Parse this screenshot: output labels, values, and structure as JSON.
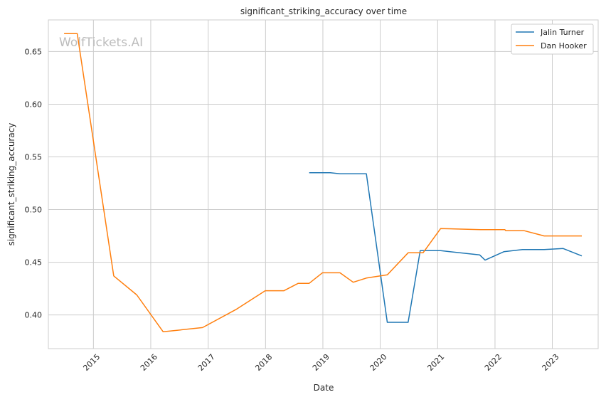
{
  "chart_data": {
    "type": "line",
    "title": "significant_striking_accuracy over time",
    "xlabel": "Date",
    "ylabel": "significant_striking_accuracy",
    "watermark": "WolfTickets.AI",
    "xlim": [
      "2014-03-20",
      "2023-10-20"
    ],
    "ylim": [
      0.368,
      0.68
    ],
    "x_ticks": [
      "2015",
      "2016",
      "2017",
      "2018",
      "2019",
      "2020",
      "2021",
      "2022",
      "2023"
    ],
    "y_ticks": [
      "0.40",
      "0.45",
      "0.50",
      "0.55",
      "0.60",
      "0.65"
    ],
    "y_tick_values": [
      0.4,
      0.45,
      0.5,
      0.55,
      0.6,
      0.65
    ],
    "grid": true,
    "legend_position": "top-right",
    "series": [
      {
        "name": "Jalin Turner",
        "color": "#1f77b4",
        "points": [
          [
            "2018-10-06",
            0.535
          ],
          [
            "2019-02-17",
            0.535
          ],
          [
            "2019-04-20",
            0.534
          ],
          [
            "2019-10-05",
            0.534
          ],
          [
            "2020-02-15",
            0.393
          ],
          [
            "2020-06-27",
            0.393
          ],
          [
            "2020-09-12",
            0.461
          ],
          [
            "2021-01-20",
            0.461
          ],
          [
            "2021-09-25",
            0.457
          ],
          [
            "2021-10-30",
            0.452
          ],
          [
            "2022-02-26",
            0.46
          ],
          [
            "2022-06-25",
            0.462
          ],
          [
            "2022-11-10",
            0.462
          ],
          [
            "2023-03-11",
            0.463
          ],
          [
            "2023-07-08",
            0.456
          ]
        ]
      },
      {
        "name": "Dan Hooker",
        "color": "#ff7f0e",
        "points": [
          [
            "2014-06-28",
            0.667
          ],
          [
            "2014-09-20",
            0.667
          ],
          [
            "2015-05-10",
            0.437
          ],
          [
            "2015-10-04",
            0.419
          ],
          [
            "2016-03-20",
            0.384
          ],
          [
            "2016-11-26",
            0.388
          ],
          [
            "2017-06-25",
            0.405
          ],
          [
            "2017-12-30",
            0.423
          ],
          [
            "2018-04-28",
            0.423
          ],
          [
            "2018-07-28",
            0.43
          ],
          [
            "2018-10-06",
            0.43
          ],
          [
            "2018-12-29",
            0.44
          ],
          [
            "2019-04-20",
            0.44
          ],
          [
            "2019-07-13",
            0.431
          ],
          [
            "2019-10-05",
            0.435
          ],
          [
            "2020-02-15",
            0.438
          ],
          [
            "2020-06-27",
            0.459
          ],
          [
            "2020-09-30",
            0.459
          ],
          [
            "2021-01-20",
            0.482
          ],
          [
            "2021-10-01",
            0.481
          ],
          [
            "2021-10-30",
            0.481
          ],
          [
            "2022-03-05",
            0.481
          ],
          [
            "2022-03-10",
            0.48
          ],
          [
            "2022-07-05",
            0.48
          ],
          [
            "2022-11-10",
            0.475
          ],
          [
            "2023-03-11",
            0.475
          ],
          [
            "2023-07-08",
            0.475
          ]
        ]
      }
    ]
  }
}
